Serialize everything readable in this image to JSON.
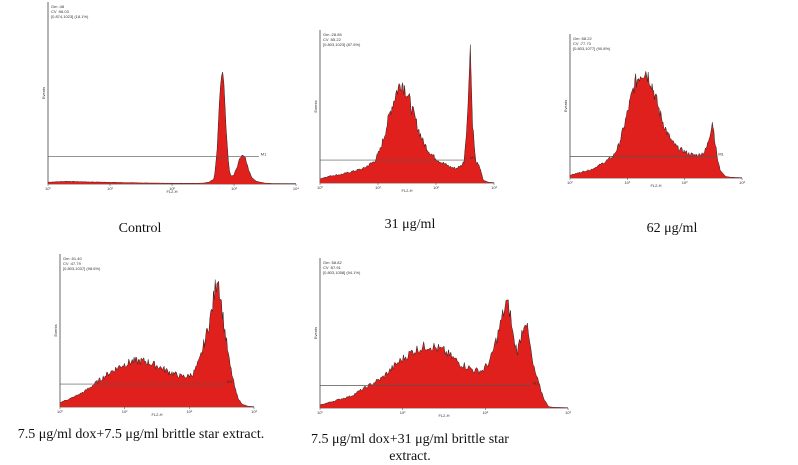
{
  "chart_data": [
    {
      "type": "area",
      "caption": "Control",
      "stats": [
        "Gm   :48",
        "CV   :96.03",
        "[0.874,1023]   (18.1%)"
      ],
      "xlabel": "FL2-H",
      "ylabel": "Events",
      "marker": "M1",
      "x_ticks": [
        "10⁰",
        "10¹",
        "10²",
        "10³",
        "10⁴"
      ],
      "x": [
        0,
        0.3,
        0.6,
        0.9,
        1.2,
        1.5,
        1.8,
        2.0,
        2.2,
        2.4,
        2.5,
        2.6,
        2.68,
        2.72,
        2.76,
        2.8,
        2.84,
        2.88,
        2.92,
        2.96,
        3.0,
        3.06,
        3.12,
        3.18,
        3.24,
        3.3,
        3.36,
        3.42,
        3.5,
        3.6,
        4.0
      ],
      "y": [
        0.01,
        0.015,
        0.012,
        0.01,
        0.008,
        0.006,
        0.005,
        0.004,
        0.004,
        0.004,
        0.005,
        0.01,
        0.03,
        0.15,
        0.45,
        0.65,
        0.55,
        0.25,
        0.08,
        0.04,
        0.05,
        0.1,
        0.16,
        0.14,
        0.07,
        0.03,
        0.015,
        0.01,
        0.005,
        0.003,
        0.002
      ],
      "xlim": [
        0,
        4
      ],
      "ylim": [
        0,
        1
      ]
    },
    {
      "type": "area",
      "caption": "31 μg/ml",
      "stats": [
        "Gm   :28.85",
        "CV   :55.22",
        "[0.803,1023]   (87.5%)"
      ],
      "xlabel": "FL2-H",
      "ylabel": "Events",
      "marker": "M1",
      "x_ticks": [
        "10⁰",
        "10¹",
        "10²",
        "10³"
      ],
      "x": [
        0,
        0.2,
        0.4,
        0.6,
        0.8,
        1.0,
        1.1,
        1.2,
        1.3,
        1.4,
        1.5,
        1.6,
        1.7,
        1.8,
        1.9,
        2.0,
        2.1,
        2.2,
        2.3,
        2.4,
        2.5,
        2.6,
        2.65,
        2.72,
        2.76,
        2.8,
        2.86,
        2.95,
        3.0,
        3.1,
        3.2
      ],
      "y": [
        0.03,
        0.05,
        0.06,
        0.08,
        0.1,
        0.15,
        0.22,
        0.35,
        0.5,
        0.62,
        0.7,
        0.62,
        0.5,
        0.38,
        0.28,
        0.22,
        0.18,
        0.15,
        0.13,
        0.11,
        0.1,
        0.12,
        0.15,
        0.5,
        1.0,
        0.45,
        0.15,
        0.1,
        0.02,
        0.005,
        0.003
      ],
      "xlim": [
        0,
        3.2
      ],
      "ylim": [
        0,
        1.05
      ]
    },
    {
      "type": "area",
      "caption": "62 μg/ml",
      "stats": [
        "Gm   :58.22",
        "CV   :77.73",
        "[0.803,1077]   (90.8%)"
      ],
      "xlabel": "FL2-H",
      "ylabel": "Events",
      "marker": "M1",
      "x_ticks": [
        "10⁰",
        "10¹",
        "10²",
        "10³"
      ],
      "x": [
        0,
        0.2,
        0.4,
        0.6,
        0.8,
        0.9,
        1.0,
        1.1,
        1.2,
        1.3,
        1.4,
        1.5,
        1.6,
        1.7,
        1.8,
        1.9,
        2.0,
        2.1,
        2.2,
        2.3,
        2.4,
        2.5,
        2.55,
        2.6,
        2.65,
        2.7,
        2.75,
        2.8,
        2.9,
        3.0,
        3.2
      ],
      "y": [
        0.02,
        0.04,
        0.06,
        0.1,
        0.15,
        0.22,
        0.35,
        0.5,
        0.65,
        0.72,
        0.75,
        0.68,
        0.55,
        0.42,
        0.32,
        0.25,
        0.21,
        0.19,
        0.17,
        0.16,
        0.16,
        0.18,
        0.22,
        0.3,
        0.4,
        0.25,
        0.12,
        0.05,
        0.01,
        0.005,
        0.002
      ],
      "xlim": [
        0,
        3.2
      ],
      "ylim": [
        0,
        1
      ]
    },
    {
      "type": "area",
      "caption": "7.5 μg/ml dox+7.5 μg/ml brittle star extract.",
      "stats": [
        "Gm   :51.40",
        "CV   :47.79",
        "[0.803,1037]   (98.6%)"
      ],
      "xlabel": "FL2-H",
      "ylabel": "Events",
      "marker": "M1",
      "x_ticks": [
        "10⁰",
        "10¹",
        "10²",
        "10³"
      ],
      "x": [
        0,
        0.2,
        0.4,
        0.6,
        0.8,
        1.0,
        1.2,
        1.4,
        1.6,
        1.8,
        2.0,
        2.1,
        2.2,
        2.3,
        2.4,
        2.5,
        2.6,
        2.7,
        2.8,
        2.9,
        2.95,
        3.0,
        3.1,
        3.2
      ],
      "y": [
        0.03,
        0.06,
        0.1,
        0.16,
        0.22,
        0.27,
        0.3,
        0.3,
        0.27,
        0.23,
        0.2,
        0.2,
        0.22,
        0.3,
        0.45,
        0.62,
        0.88,
        0.55,
        0.28,
        0.1,
        0.05,
        0.02,
        0.005,
        0.002
      ],
      "xlim": [
        0,
        3.2
      ],
      "ylim": [
        0,
        1
      ]
    },
    {
      "type": "area",
      "caption": "7.5 μg/ml dox+31 μg/ml brittle star extract.",
      "stats": [
        "Gm   :58.82",
        "CV   :57.91",
        "[0.803,1058]   (94.1%)"
      ],
      "xlabel": "FL2-H",
      "ylabel": "Events",
      "marker": "M1",
      "x_ticks": [
        "10⁰",
        "10¹",
        "10²",
        "10³"
      ],
      "x": [
        0,
        0.2,
        0.4,
        0.6,
        0.8,
        1.0,
        1.2,
        1.4,
        1.6,
        1.8,
        2.0,
        2.1,
        2.2,
        2.3,
        2.4,
        2.45,
        2.5,
        2.55,
        2.6,
        2.65,
        2.7,
        2.75,
        2.8,
        2.85,
        2.9,
        2.95,
        3.0,
        3.2
      ],
      "y": [
        0.02,
        0.05,
        0.08,
        0.14,
        0.2,
        0.3,
        0.38,
        0.42,
        0.38,
        0.3,
        0.25,
        0.25,
        0.32,
        0.5,
        0.7,
        0.65,
        0.45,
        0.38,
        0.5,
        0.6,
        0.45,
        0.28,
        0.2,
        0.12,
        0.05,
        0.01,
        0.005,
        0.002
      ],
      "xlim": [
        0,
        3.2
      ],
      "ylim": [
        0,
        1
      ]
    }
  ]
}
